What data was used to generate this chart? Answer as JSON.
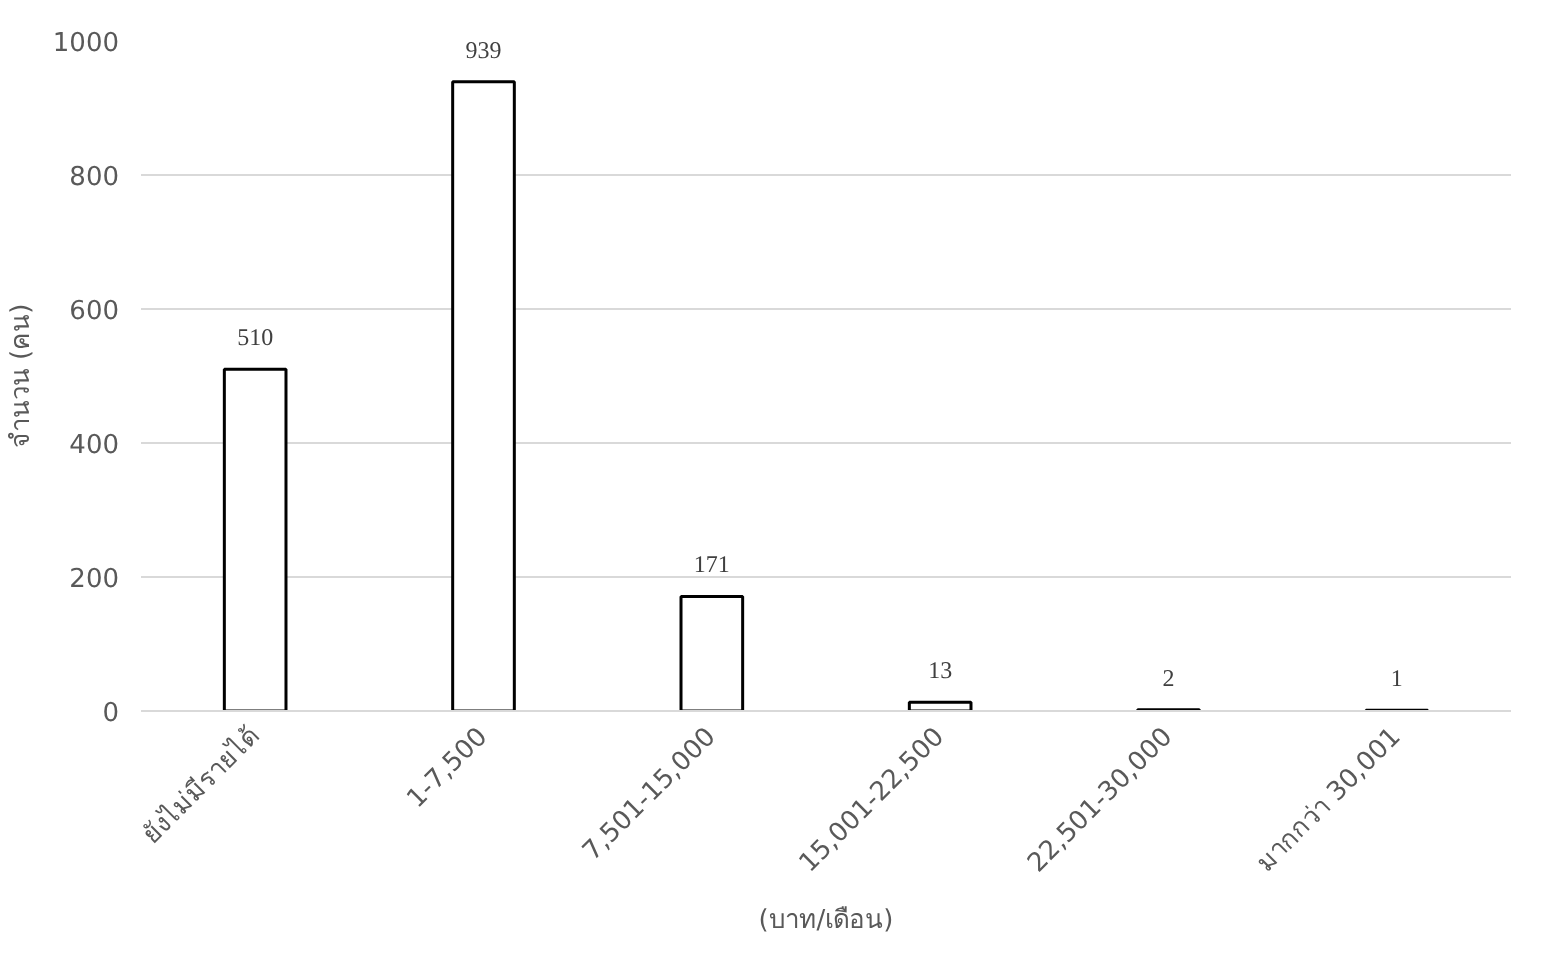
{
  "chart_data": {
    "type": "bar",
    "ylabel": "จำนวน (คน)",
    "xlabel": "(บาท/เดือน)",
    "categories": [
      "ยังไม่มีรายได้",
      "1-7,500",
      "7,501-15,000",
      "15,001-22,500",
      "22,501-30,000",
      "มากกว่า 30,001"
    ],
    "values": [
      510,
      939,
      171,
      13,
      2,
      1
    ],
    "color": "#ffffff",
    "ylim": [
      0,
      1000
    ],
    "yticks": [
      0,
      200,
      400,
      600,
      800,
      1000
    ],
    "grid": "y",
    "data_labels": true
  }
}
